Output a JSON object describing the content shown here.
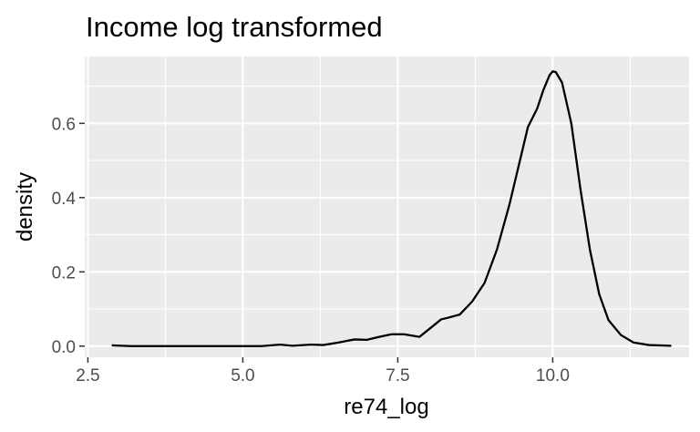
{
  "chart_data": {
    "type": "line",
    "title": "Income log transformed",
    "xlabel": "re74_log",
    "ylabel": "density",
    "xlim": [
      2.45,
      12.2
    ],
    "ylim": [
      -0.03,
      0.78
    ],
    "x_ticks": [
      2.5,
      5.0,
      7.5,
      10.0
    ],
    "x_tick_labels": [
      "2.5",
      "5.0",
      "7.5",
      "10.0"
    ],
    "y_ticks": [
      0.0,
      0.2,
      0.4,
      0.6
    ],
    "y_tick_labels": [
      "0.0",
      "0.2",
      "0.4",
      "0.6"
    ],
    "grid": true,
    "series": [
      {
        "x": [
          2.9,
          3.2,
          3.6,
          4.0,
          4.5,
          5.0,
          5.3,
          5.6,
          5.8,
          6.1,
          6.3,
          6.55,
          6.8,
          7.0,
          7.2,
          7.4,
          7.6,
          7.85,
          8.0,
          8.2,
          8.3,
          8.5,
          8.7,
          8.9,
          9.1,
          9.3,
          9.5,
          9.6,
          9.75,
          9.85,
          9.95,
          10.0,
          10.05,
          10.15,
          10.3,
          10.45,
          10.6,
          10.75,
          10.9,
          11.1,
          11.3,
          11.55,
          11.9
        ],
        "y": [
          0.002,
          0.0,
          0.0,
          0.0,
          0.0,
          0.0,
          0.0,
          0.004,
          0.001,
          0.004,
          0.003,
          0.01,
          0.018,
          0.017,
          0.025,
          0.032,
          0.032,
          0.025,
          0.045,
          0.072,
          0.076,
          0.085,
          0.12,
          0.17,
          0.26,
          0.38,
          0.52,
          0.59,
          0.64,
          0.69,
          0.73,
          0.74,
          0.738,
          0.71,
          0.6,
          0.42,
          0.26,
          0.14,
          0.07,
          0.03,
          0.01,
          0.003,
          0.001
        ]
      }
    ]
  }
}
